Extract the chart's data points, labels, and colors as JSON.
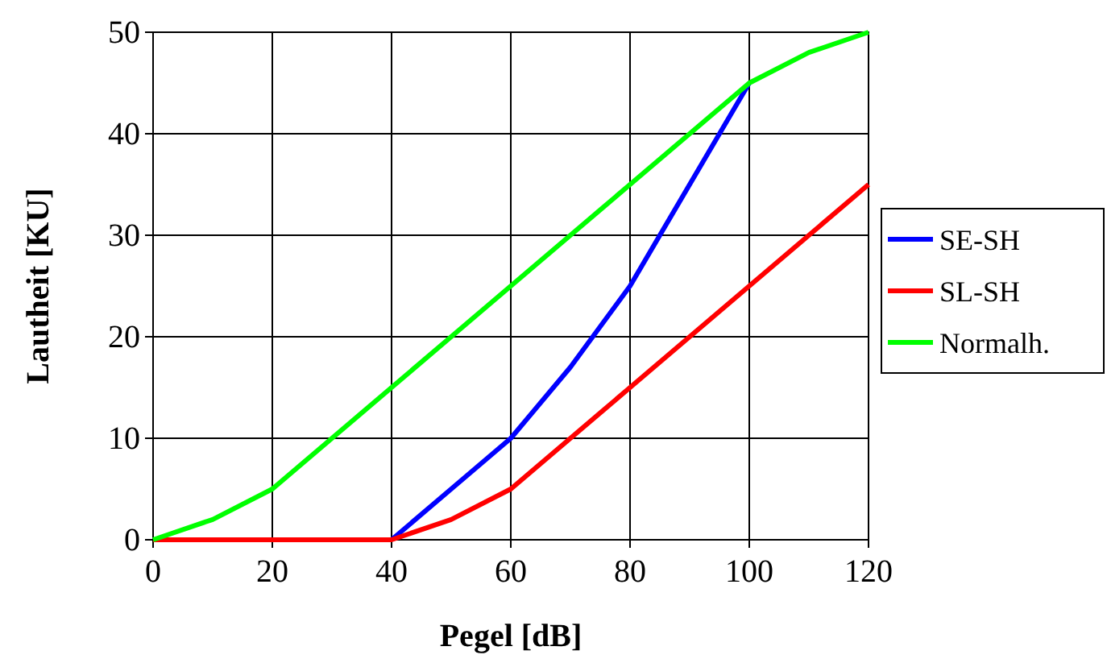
{
  "chart_data": {
    "type": "line",
    "xlabel": "Pegel [dB]",
    "ylabel": "Lautheit [KU]",
    "x": [
      0,
      10,
      20,
      30,
      40,
      50,
      60,
      70,
      80,
      90,
      100,
      110,
      120
    ],
    "series": [
      {
        "name": "SE-SH",
        "color": "#0000ff",
        "values": [
          null,
          null,
          null,
          null,
          0,
          5,
          10,
          17,
          25,
          35,
          45,
          null,
          null
        ]
      },
      {
        "name": "SL-SH",
        "color": "#ff0000",
        "values": [
          0,
          0,
          0,
          0,
          0,
          2,
          5,
          10,
          15,
          20,
          25,
          30,
          35
        ]
      },
      {
        "name": "Normalh.",
        "color": "#00ff00",
        "values": [
          0,
          2,
          5,
          10,
          15,
          20,
          25,
          30,
          35,
          40,
          45,
          48,
          50
        ]
      }
    ],
    "xlim": [
      0,
      120
    ],
    "xticks": [
      0,
      20,
      40,
      60,
      80,
      100,
      120
    ],
    "ylim": [
      0,
      50
    ],
    "yticks": [
      0,
      10,
      20,
      30,
      40,
      50
    ],
    "grid": true,
    "legend": "right",
    "marker": "none",
    "line_style": "solid"
  }
}
